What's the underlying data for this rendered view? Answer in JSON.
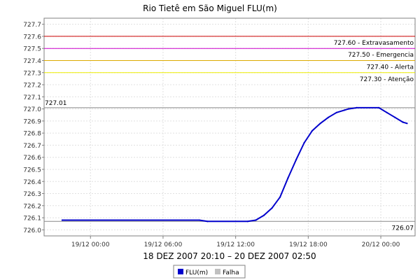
{
  "chart_data": {
    "type": "line",
    "title": "Rio Tietê em São Miguel FLU(m)",
    "xlabel": "18 DEZ 2007 20:10 – 20 DEZ 2007 02:50",
    "ylabel": "",
    "ylim": [
      725.95,
      727.75
    ],
    "xlim": [
      "2007-12-18 20:10",
      "2007-12-20 02:50"
    ],
    "grid": true,
    "y_ticks": [
      "726.0",
      "726.1",
      "726.2",
      "726.3",
      "726.4",
      "726.5",
      "726.6",
      "726.7",
      "726.8",
      "726.9",
      "727.0",
      "727.1",
      "727.2",
      "727.3",
      "727.4",
      "727.5",
      "727.6",
      "727.7"
    ],
    "x_ticks": [
      {
        "t": "2007-12-19 00:00",
        "label": "19/12 00:00"
      },
      {
        "t": "2007-12-19 06:00",
        "label": "19/12 06:00"
      },
      {
        "t": "2007-12-19 12:00",
        "label": "19/12 12:00"
      },
      {
        "t": "2007-12-19 18:00",
        "label": "19/12 18:00"
      },
      {
        "t": "2007-12-20 00:00",
        "label": "20/12 00:00"
      }
    ],
    "thresholds": [
      {
        "value": 727.6,
        "label": "727.60 - Extravasamento",
        "color": "#cc0000"
      },
      {
        "value": 727.5,
        "label": "727.50 - Emergencia",
        "color": "#cc00cc"
      },
      {
        "value": 727.4,
        "label": "727.40 - Alerta",
        "color": "#ddaa00"
      },
      {
        "value": 727.3,
        "label": "727.30 - Atenção",
        "color": "#eeee00"
      }
    ],
    "reference_lines": [
      {
        "value": 727.01,
        "label": "727.01",
        "label_side": "left",
        "color": "#888888"
      },
      {
        "value": 726.07,
        "label": "726.07",
        "label_side": "right",
        "color": "#888888"
      }
    ],
    "series": [
      {
        "name": "FLU(m)",
        "color": "#0000cc",
        "points": [
          [
            "2007-12-18 21:40",
            726.08
          ],
          [
            "2007-12-19 09:00",
            726.08
          ],
          [
            "2007-12-19 09:40",
            726.07
          ],
          [
            "2007-12-19 13:00",
            726.07
          ],
          [
            "2007-12-19 13:40",
            726.08
          ],
          [
            "2007-12-19 14:20",
            726.12
          ],
          [
            "2007-12-19 15:00",
            726.18
          ],
          [
            "2007-12-19 15:40",
            726.27
          ],
          [
            "2007-12-19 16:20",
            726.43
          ],
          [
            "2007-12-19 17:00",
            726.58
          ],
          [
            "2007-12-19 17:40",
            726.72
          ],
          [
            "2007-12-19 18:20",
            726.82
          ],
          [
            "2007-12-19 19:00",
            726.88
          ],
          [
            "2007-12-19 19:40",
            726.93
          ],
          [
            "2007-12-19 20:20",
            726.97
          ],
          [
            "2007-12-19 21:00",
            726.99
          ],
          [
            "2007-12-19 21:20",
            727.0
          ],
          [
            "2007-12-19 22:00",
            727.01
          ],
          [
            "2007-12-19 23:50",
            727.01
          ],
          [
            "2007-12-20 00:30",
            726.97
          ],
          [
            "2007-12-20 01:10",
            726.93
          ],
          [
            "2007-12-20 01:50",
            726.89
          ],
          [
            "2007-12-20 02:10",
            726.88
          ]
        ]
      }
    ],
    "legend": {
      "position": "bottom-center",
      "items": [
        {
          "label": "FLU(m)",
          "color": "#0000cc"
        },
        {
          "label": "Falha",
          "color": "#c0c0c0"
        }
      ]
    }
  }
}
